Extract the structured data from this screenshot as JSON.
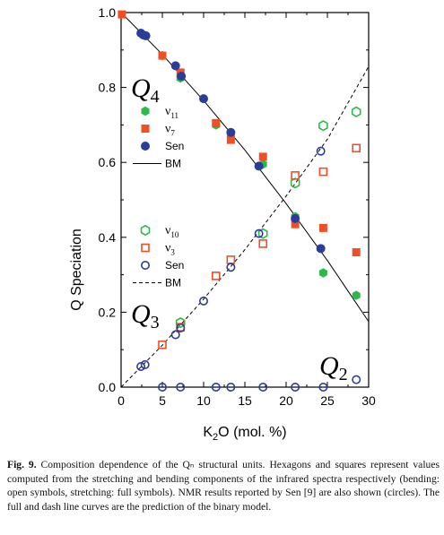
{
  "caption": {
    "label": "Fig. 9.",
    "text": "Composition dependence of the Qₙ structural units. Hexagons and squares represent values computed from the stretching and bending components of the infrared spectra respectively (bending: open symbols, stretching: full symbols). NMR results reported by Sen [9] are also shown (circles). The full and dash line curves are the prediction of the binary model."
  },
  "chart_data": {
    "type": "scatter",
    "xlabel": "K₂O (mol. %)",
    "ylabel": "Q Speciation",
    "xlim": [
      0,
      30
    ],
    "ylim": [
      0,
      1.0
    ],
    "x_ticks": [
      "0",
      "5",
      "10",
      "15",
      "20",
      "25",
      "30"
    ],
    "y_ticks": [
      "0.0",
      "0.2",
      "0.4",
      "0.6",
      "0.8",
      "1.0"
    ],
    "grid": false,
    "region_labels": [
      {
        "base": "Q",
        "sub": "4"
      },
      {
        "base": "Q",
        "sub": "3"
      },
      {
        "base": "Q",
        "sub": "2"
      }
    ],
    "legend_Q4": [
      {
        "name": "ν",
        "sub": "11",
        "marker": "hexagon",
        "fill": "filled",
        "color": "#2db84a"
      },
      {
        "name": "ν",
        "sub": "7",
        "marker": "square",
        "fill": "filled",
        "color": "#f04e23"
      },
      {
        "name": "Sen",
        "sub": "",
        "marker": "circle",
        "fill": "filled",
        "color": "#2b3d9a"
      },
      {
        "name": "BM",
        "sub": "",
        "marker": "line",
        "style": "solid",
        "color": "#000000"
      }
    ],
    "legend_Q3": [
      {
        "name": "ν",
        "sub": "10",
        "marker": "hexagon",
        "fill": "open",
        "color": "#2db84a"
      },
      {
        "name": "ν",
        "sub": "3",
        "marker": "square",
        "fill": "open",
        "color": "#f04e23"
      },
      {
        "name": "Sen",
        "sub": "",
        "marker": "circle",
        "fill": "open",
        "color": "#2b3d9a"
      },
      {
        "name": "BM",
        "sub": "",
        "marker": "line",
        "style": "dashed",
        "color": "#000000"
      }
    ],
    "series": [
      {
        "key": "v11_Q4",
        "marker": "hexagon",
        "fill": "filled",
        "color": "#2db84a",
        "x": [
          5.0,
          7.2,
          11.5,
          13.3,
          17.2,
          21.1,
          24.5,
          28.5
        ],
        "y": [
          0.885,
          0.825,
          0.7,
          0.67,
          0.595,
          0.455,
          0.305,
          0.245
        ]
      },
      {
        "key": "v7_Q4",
        "marker": "square",
        "fill": "filled",
        "color": "#f04e23",
        "x": [
          0.1,
          5.0,
          7.2,
          11.5,
          13.3,
          17.2,
          21.1,
          24.5,
          28.5
        ],
        "y": [
          0.995,
          0.885,
          0.84,
          0.705,
          0.66,
          0.615,
          0.435,
          0.425,
          0.36
        ]
      },
      {
        "key": "sen_Q4",
        "marker": "circle",
        "fill": "filled",
        "color": "#2b3d9a",
        "x": [
          2.4,
          2.7,
          3.0,
          6.6,
          7.3,
          10.0,
          13.3,
          16.7,
          21.1,
          24.2
        ],
        "y": [
          0.945,
          0.94,
          0.938,
          0.858,
          0.83,
          0.77,
          0.68,
          0.59,
          0.45,
          0.37
        ]
      },
      {
        "key": "v10_Q3",
        "marker": "hexagon",
        "fill": "open",
        "color": "#2db84a",
        "x": [
          7.2,
          17.2,
          21.1,
          24.5,
          28.5
        ],
        "y": [
          0.172,
          0.41,
          0.545,
          0.698,
          0.735
        ]
      },
      {
        "key": "v3_Q3",
        "marker": "square",
        "fill": "open",
        "color": "#f04e23",
        "x": [
          5.0,
          7.2,
          11.5,
          13.3,
          17.2,
          21.1,
          24.5,
          28.5
        ],
        "y": [
          0.113,
          0.16,
          0.297,
          0.34,
          0.383,
          0.565,
          0.575,
          0.638
        ]
      },
      {
        "key": "sen_Q3",
        "marker": "circle",
        "fill": "open",
        "color": "#2b3d9a",
        "x": [
          2.4,
          2.9,
          6.6,
          7.2,
          10.0,
          13.3,
          16.7,
          24.2
        ],
        "y": [
          0.055,
          0.06,
          0.14,
          0.158,
          0.23,
          0.32,
          0.41,
          0.63
        ]
      },
      {
        "key": "sen_Q2",
        "marker": "circle",
        "fill": "open",
        "color": "#2b3d9a",
        "x": [
          5.0,
          7.2,
          11.5,
          13.3,
          17.2,
          21.1,
          24.5,
          28.5
        ],
        "y": [
          0.0,
          0.0,
          0.0,
          0.0,
          0.0,
          0.0,
          0.0,
          0.02
        ]
      }
    ],
    "curves": [
      {
        "key": "BM_Q4",
        "style": "solid",
        "color": "#000000",
        "x": [
          0,
          5,
          10,
          15,
          20,
          25,
          30
        ],
        "y": [
          1.0,
          0.888,
          0.765,
          0.633,
          0.49,
          0.338,
          0.175
        ]
      },
      {
        "key": "BM_Q3",
        "style": "dashed",
        "color": "#000000",
        "x": [
          0,
          5,
          10,
          15,
          20,
          25,
          30
        ],
        "y": [
          0.0,
          0.112,
          0.235,
          0.367,
          0.51,
          0.662,
          0.856
        ]
      }
    ]
  }
}
